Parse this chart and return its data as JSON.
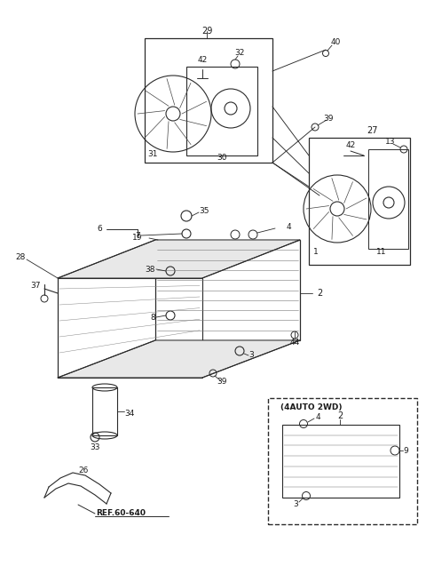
{
  "bg_color": "#ffffff",
  "line_color": "#2a2a2a",
  "fig_width": 4.8,
  "fig_height": 6.55,
  "dpi": 100
}
